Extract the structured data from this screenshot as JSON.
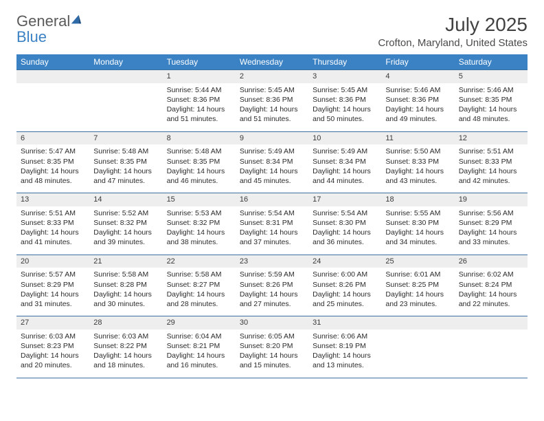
{
  "logo": {
    "word1": "General",
    "word2": "Blue"
  },
  "title": "July 2025",
  "location": "Crofton, Maryland, United States",
  "day_headers": [
    "Sunday",
    "Monday",
    "Tuesday",
    "Wednesday",
    "Thursday",
    "Friday",
    "Saturday"
  ],
  "colors": {
    "header_bg": "#3b82c4",
    "daynum_bg": "#eeeeee",
    "rule": "#3b6fa0",
    "logo_gray": "#5a5a5a",
    "logo_blue": "#3b82c4",
    "text": "#2b2b2b",
    "title_text": "#424242"
  },
  "weeks": [
    [
      null,
      null,
      {
        "n": "1",
        "sr": "Sunrise: 5:44 AM",
        "ss": "Sunset: 8:36 PM",
        "dl": "Daylight: 14 hours and 51 minutes."
      },
      {
        "n": "2",
        "sr": "Sunrise: 5:45 AM",
        "ss": "Sunset: 8:36 PM",
        "dl": "Daylight: 14 hours and 51 minutes."
      },
      {
        "n": "3",
        "sr": "Sunrise: 5:45 AM",
        "ss": "Sunset: 8:36 PM",
        "dl": "Daylight: 14 hours and 50 minutes."
      },
      {
        "n": "4",
        "sr": "Sunrise: 5:46 AM",
        "ss": "Sunset: 8:36 PM",
        "dl": "Daylight: 14 hours and 49 minutes."
      },
      {
        "n": "5",
        "sr": "Sunrise: 5:46 AM",
        "ss": "Sunset: 8:35 PM",
        "dl": "Daylight: 14 hours and 48 minutes."
      }
    ],
    [
      {
        "n": "6",
        "sr": "Sunrise: 5:47 AM",
        "ss": "Sunset: 8:35 PM",
        "dl": "Daylight: 14 hours and 48 minutes."
      },
      {
        "n": "7",
        "sr": "Sunrise: 5:48 AM",
        "ss": "Sunset: 8:35 PM",
        "dl": "Daylight: 14 hours and 47 minutes."
      },
      {
        "n": "8",
        "sr": "Sunrise: 5:48 AM",
        "ss": "Sunset: 8:35 PM",
        "dl": "Daylight: 14 hours and 46 minutes."
      },
      {
        "n": "9",
        "sr": "Sunrise: 5:49 AM",
        "ss": "Sunset: 8:34 PM",
        "dl": "Daylight: 14 hours and 45 minutes."
      },
      {
        "n": "10",
        "sr": "Sunrise: 5:49 AM",
        "ss": "Sunset: 8:34 PM",
        "dl": "Daylight: 14 hours and 44 minutes."
      },
      {
        "n": "11",
        "sr": "Sunrise: 5:50 AM",
        "ss": "Sunset: 8:33 PM",
        "dl": "Daylight: 14 hours and 43 minutes."
      },
      {
        "n": "12",
        "sr": "Sunrise: 5:51 AM",
        "ss": "Sunset: 8:33 PM",
        "dl": "Daylight: 14 hours and 42 minutes."
      }
    ],
    [
      {
        "n": "13",
        "sr": "Sunrise: 5:51 AM",
        "ss": "Sunset: 8:33 PM",
        "dl": "Daylight: 14 hours and 41 minutes."
      },
      {
        "n": "14",
        "sr": "Sunrise: 5:52 AM",
        "ss": "Sunset: 8:32 PM",
        "dl": "Daylight: 14 hours and 39 minutes."
      },
      {
        "n": "15",
        "sr": "Sunrise: 5:53 AM",
        "ss": "Sunset: 8:32 PM",
        "dl": "Daylight: 14 hours and 38 minutes."
      },
      {
        "n": "16",
        "sr": "Sunrise: 5:54 AM",
        "ss": "Sunset: 8:31 PM",
        "dl": "Daylight: 14 hours and 37 minutes."
      },
      {
        "n": "17",
        "sr": "Sunrise: 5:54 AM",
        "ss": "Sunset: 8:30 PM",
        "dl": "Daylight: 14 hours and 36 minutes."
      },
      {
        "n": "18",
        "sr": "Sunrise: 5:55 AM",
        "ss": "Sunset: 8:30 PM",
        "dl": "Daylight: 14 hours and 34 minutes."
      },
      {
        "n": "19",
        "sr": "Sunrise: 5:56 AM",
        "ss": "Sunset: 8:29 PM",
        "dl": "Daylight: 14 hours and 33 minutes."
      }
    ],
    [
      {
        "n": "20",
        "sr": "Sunrise: 5:57 AM",
        "ss": "Sunset: 8:29 PM",
        "dl": "Daylight: 14 hours and 31 minutes."
      },
      {
        "n": "21",
        "sr": "Sunrise: 5:58 AM",
        "ss": "Sunset: 8:28 PM",
        "dl": "Daylight: 14 hours and 30 minutes."
      },
      {
        "n": "22",
        "sr": "Sunrise: 5:58 AM",
        "ss": "Sunset: 8:27 PM",
        "dl": "Daylight: 14 hours and 28 minutes."
      },
      {
        "n": "23",
        "sr": "Sunrise: 5:59 AM",
        "ss": "Sunset: 8:26 PM",
        "dl": "Daylight: 14 hours and 27 minutes."
      },
      {
        "n": "24",
        "sr": "Sunrise: 6:00 AM",
        "ss": "Sunset: 8:26 PM",
        "dl": "Daylight: 14 hours and 25 minutes."
      },
      {
        "n": "25",
        "sr": "Sunrise: 6:01 AM",
        "ss": "Sunset: 8:25 PM",
        "dl": "Daylight: 14 hours and 23 minutes."
      },
      {
        "n": "26",
        "sr": "Sunrise: 6:02 AM",
        "ss": "Sunset: 8:24 PM",
        "dl": "Daylight: 14 hours and 22 minutes."
      }
    ],
    [
      {
        "n": "27",
        "sr": "Sunrise: 6:03 AM",
        "ss": "Sunset: 8:23 PM",
        "dl": "Daylight: 14 hours and 20 minutes."
      },
      {
        "n": "28",
        "sr": "Sunrise: 6:03 AM",
        "ss": "Sunset: 8:22 PM",
        "dl": "Daylight: 14 hours and 18 minutes."
      },
      {
        "n": "29",
        "sr": "Sunrise: 6:04 AM",
        "ss": "Sunset: 8:21 PM",
        "dl": "Daylight: 14 hours and 16 minutes."
      },
      {
        "n": "30",
        "sr": "Sunrise: 6:05 AM",
        "ss": "Sunset: 8:20 PM",
        "dl": "Daylight: 14 hours and 15 minutes."
      },
      {
        "n": "31",
        "sr": "Sunrise: 6:06 AM",
        "ss": "Sunset: 8:19 PM",
        "dl": "Daylight: 14 hours and 13 minutes."
      },
      null,
      null
    ]
  ]
}
